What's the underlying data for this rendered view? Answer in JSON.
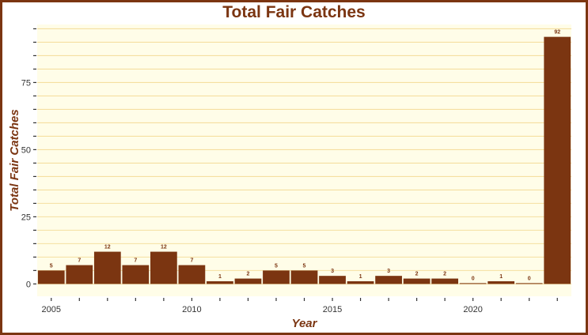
{
  "chart_data": {
    "type": "bar",
    "title": "Total Fair Catches",
    "xlabel": "Year",
    "ylabel": "Total Fair Catches",
    "categories": [
      2005,
      2006,
      2007,
      2008,
      2009,
      2010,
      2011,
      2012,
      2013,
      2014,
      2015,
      2016,
      2017,
      2018,
      2019,
      2020,
      2021,
      2022,
      2023
    ],
    "values": [
      5,
      7,
      12,
      7,
      12,
      7,
      1,
      2,
      5,
      5,
      3,
      1,
      3,
      2,
      2,
      0,
      1,
      0,
      92
    ],
    "data_labels": [
      "5",
      "7",
      "12",
      "7",
      "12",
      "7",
      "1",
      "2",
      "5",
      "5",
      "3",
      "1",
      "3",
      "2",
      "2",
      "0",
      "1",
      "0",
      "92"
    ],
    "x_ticks": [
      "2005",
      "2010",
      "2015",
      "2020"
    ],
    "y_ticks": [
      "0",
      "25",
      "50",
      "75"
    ],
    "xlim": [
      2004.5,
      2023.5
    ],
    "ylim": [
      -4.6,
      96.6
    ],
    "grid": true,
    "legend": "none",
    "colors": {
      "bar": "#7b3511",
      "panel_background": "#fffde8",
      "gridline": "#f5dfa0",
      "border": "#7b3511",
      "text": "#7b3511",
      "tick_text": "#333333"
    }
  }
}
